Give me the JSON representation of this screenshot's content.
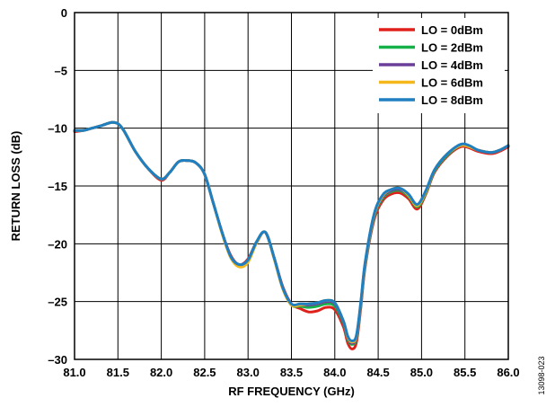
{
  "chart_data": {
    "type": "line",
    "xlabel": "RF FREQUENCY (GHz)",
    "ylabel": "RETURN LOSS (dB)",
    "xlim": [
      81.0,
      86.0
    ],
    "ylim": [
      -30,
      0
    ],
    "x_ticks": [
      "81.0",
      "81.5",
      "82.0",
      "82.5",
      "83.0",
      "83.5",
      "84.0",
      "84.5",
      "85.0",
      "85.5",
      "86.0"
    ],
    "y_ticks": [
      "0",
      "–5",
      "–10",
      "–15",
      "–20",
      "–25",
      "–30"
    ],
    "grid": true,
    "legend_position": "top-right",
    "figure_id": "13098-023",
    "series": [
      {
        "name": "LO = 0dBm",
        "color": "#e0211b",
        "x": [
          81.0,
          81.1,
          81.2,
          81.3,
          81.45,
          81.55,
          81.7,
          81.85,
          82.0,
          82.1,
          82.2,
          82.3,
          82.4,
          82.5,
          82.6,
          82.7,
          82.8,
          82.9,
          83.0,
          83.1,
          83.2,
          83.3,
          83.4,
          83.5,
          83.6,
          83.7,
          83.8,
          83.9,
          84.0,
          84.1,
          84.15,
          84.2,
          84.25,
          84.3,
          84.35,
          84.45,
          84.55,
          84.65,
          84.75,
          84.85,
          84.95,
          85.05,
          85.15,
          85.3,
          85.45,
          85.55,
          85.65,
          85.8,
          85.9,
          86.0
        ],
        "y": [
          -10.3,
          -10.2,
          -10.0,
          -9.8,
          -9.5,
          -10.0,
          -12.0,
          -13.5,
          -14.5,
          -13.8,
          -12.9,
          -12.8,
          -13.0,
          -14.0,
          -16.5,
          -19.0,
          -21.0,
          -21.8,
          -21.3,
          -19.8,
          -19.0,
          -21.2,
          -23.7,
          -25.2,
          -25.6,
          -25.9,
          -25.8,
          -25.5,
          -25.7,
          -27.2,
          -28.6,
          -29.1,
          -28.5,
          -25.5,
          -22.0,
          -18.0,
          -16.3,
          -15.7,
          -15.6,
          -16.1,
          -17.0,
          -15.7,
          -13.8,
          -12.4,
          -11.6,
          -11.7,
          -12.0,
          -12.2,
          -12.0,
          -11.6
        ]
      },
      {
        "name": "LO = 2dBm",
        "color": "#17b14a",
        "x": [
          81.0,
          81.1,
          81.2,
          81.3,
          81.45,
          81.55,
          81.7,
          81.85,
          82.0,
          82.1,
          82.2,
          82.3,
          82.4,
          82.5,
          82.6,
          82.7,
          82.8,
          82.9,
          83.0,
          83.1,
          83.2,
          83.3,
          83.4,
          83.5,
          83.6,
          83.7,
          83.8,
          83.9,
          84.0,
          84.1,
          84.15,
          84.2,
          84.25,
          84.3,
          84.35,
          84.45,
          84.55,
          84.65,
          84.75,
          84.85,
          84.95,
          85.05,
          85.15,
          85.3,
          85.45,
          85.55,
          85.65,
          85.8,
          85.9,
          86.0
        ],
        "y": [
          -10.2,
          -10.2,
          -10.0,
          -9.8,
          -9.5,
          -10.0,
          -12.0,
          -13.5,
          -14.4,
          -13.8,
          -12.9,
          -12.8,
          -13.0,
          -14.0,
          -16.5,
          -19.0,
          -21.1,
          -21.9,
          -21.4,
          -19.8,
          -19.0,
          -21.2,
          -23.8,
          -25.3,
          -25.4,
          -25.5,
          -25.4,
          -25.2,
          -25.4,
          -26.9,
          -28.3,
          -28.7,
          -28.2,
          -25.3,
          -21.9,
          -17.8,
          -16.1,
          -15.5,
          -15.4,
          -15.9,
          -16.8,
          -15.6,
          -13.7,
          -12.3,
          -11.5,
          -11.6,
          -11.9,
          -12.1,
          -11.9,
          -11.5
        ]
      },
      {
        "name": "LO = 4dBm",
        "color": "#6b3e9a",
        "x": [
          81.0,
          81.1,
          81.2,
          81.3,
          81.45,
          81.55,
          81.7,
          81.85,
          82.0,
          82.1,
          82.2,
          82.3,
          82.4,
          82.5,
          82.6,
          82.7,
          82.8,
          82.9,
          83.0,
          83.1,
          83.2,
          83.3,
          83.4,
          83.5,
          83.6,
          83.7,
          83.8,
          83.9,
          84.0,
          84.1,
          84.15,
          84.2,
          84.25,
          84.3,
          84.35,
          84.45,
          84.55,
          84.65,
          84.75,
          84.85,
          84.95,
          85.05,
          85.15,
          85.3,
          85.45,
          85.55,
          85.65,
          85.8,
          85.9,
          86.0
        ],
        "y": [
          -10.2,
          -10.2,
          -10.0,
          -9.8,
          -9.5,
          -10.0,
          -12.0,
          -13.5,
          -14.4,
          -13.8,
          -12.9,
          -12.8,
          -13.0,
          -14.0,
          -16.5,
          -19.0,
          -21.1,
          -21.9,
          -21.5,
          -19.9,
          -19.0,
          -21.2,
          -23.8,
          -25.3,
          -25.3,
          -25.3,
          -25.2,
          -25.0,
          -25.2,
          -26.8,
          -28.2,
          -28.6,
          -28.1,
          -25.2,
          -21.8,
          -17.7,
          -16.0,
          -15.4,
          -15.3,
          -15.8,
          -16.7,
          -15.5,
          -13.6,
          -12.2,
          -11.5,
          -11.6,
          -11.9,
          -12.1,
          -11.9,
          -11.5
        ]
      },
      {
        "name": "LO = 6dBm",
        "color": "#f5b81c",
        "x": [
          81.0,
          81.1,
          81.2,
          81.3,
          81.45,
          81.55,
          81.7,
          81.85,
          82.0,
          82.1,
          82.2,
          82.3,
          82.4,
          82.5,
          82.6,
          82.7,
          82.8,
          82.9,
          83.0,
          83.1,
          83.2,
          83.3,
          83.4,
          83.5,
          83.6,
          83.7,
          83.8,
          83.9,
          84.0,
          84.1,
          84.15,
          84.2,
          84.25,
          84.3,
          84.35,
          84.45,
          84.55,
          84.65,
          84.75,
          84.85,
          84.95,
          85.05,
          85.15,
          85.3,
          85.45,
          85.55,
          85.65,
          85.8,
          85.9,
          86.0
        ],
        "y": [
          -10.2,
          -10.2,
          -10.0,
          -9.8,
          -9.5,
          -10.0,
          -12.0,
          -13.5,
          -14.4,
          -13.8,
          -12.9,
          -12.8,
          -13.0,
          -14.0,
          -16.5,
          -19.1,
          -21.2,
          -22.0,
          -21.6,
          -19.9,
          -19.0,
          -21.3,
          -23.9,
          -25.3,
          -25.3,
          -25.2,
          -25.1,
          -24.9,
          -25.1,
          -26.7,
          -28.1,
          -28.5,
          -28.0,
          -25.1,
          -21.7,
          -17.6,
          -15.9,
          -15.3,
          -15.2,
          -15.8,
          -16.7,
          -15.5,
          -13.6,
          -12.2,
          -11.5,
          -11.6,
          -11.9,
          -12.1,
          -11.9,
          -11.5
        ]
      },
      {
        "name": "LO = 8dBm",
        "color": "#1f7fc1",
        "x": [
          81.0,
          81.1,
          81.2,
          81.3,
          81.45,
          81.55,
          81.7,
          81.85,
          82.0,
          82.1,
          82.2,
          82.3,
          82.4,
          82.5,
          82.6,
          82.7,
          82.8,
          82.9,
          83.0,
          83.1,
          83.2,
          83.3,
          83.4,
          83.5,
          83.6,
          83.7,
          83.8,
          83.9,
          84.0,
          84.1,
          84.15,
          84.2,
          84.25,
          84.3,
          84.35,
          84.45,
          84.55,
          84.65,
          84.75,
          84.85,
          84.95,
          85.05,
          85.15,
          85.3,
          85.45,
          85.55,
          85.65,
          85.8,
          85.9,
          86.0
        ],
        "y": [
          -10.2,
          -10.2,
          -10.0,
          -9.8,
          -9.5,
          -10.0,
          -12.0,
          -13.5,
          -14.4,
          -13.8,
          -12.9,
          -12.8,
          -13.0,
          -14.0,
          -16.5,
          -19.0,
          -21.1,
          -21.8,
          -21.4,
          -19.8,
          -19.0,
          -21.2,
          -23.8,
          -25.2,
          -25.2,
          -25.2,
          -25.1,
          -24.9,
          -25.1,
          -26.7,
          -28.0,
          -28.4,
          -27.9,
          -25.0,
          -21.6,
          -17.5,
          -15.8,
          -15.3,
          -15.2,
          -15.7,
          -16.6,
          -15.4,
          -13.6,
          -12.2,
          -11.4,
          -11.5,
          -11.9,
          -12.1,
          -11.9,
          -11.5
        ]
      }
    ]
  }
}
